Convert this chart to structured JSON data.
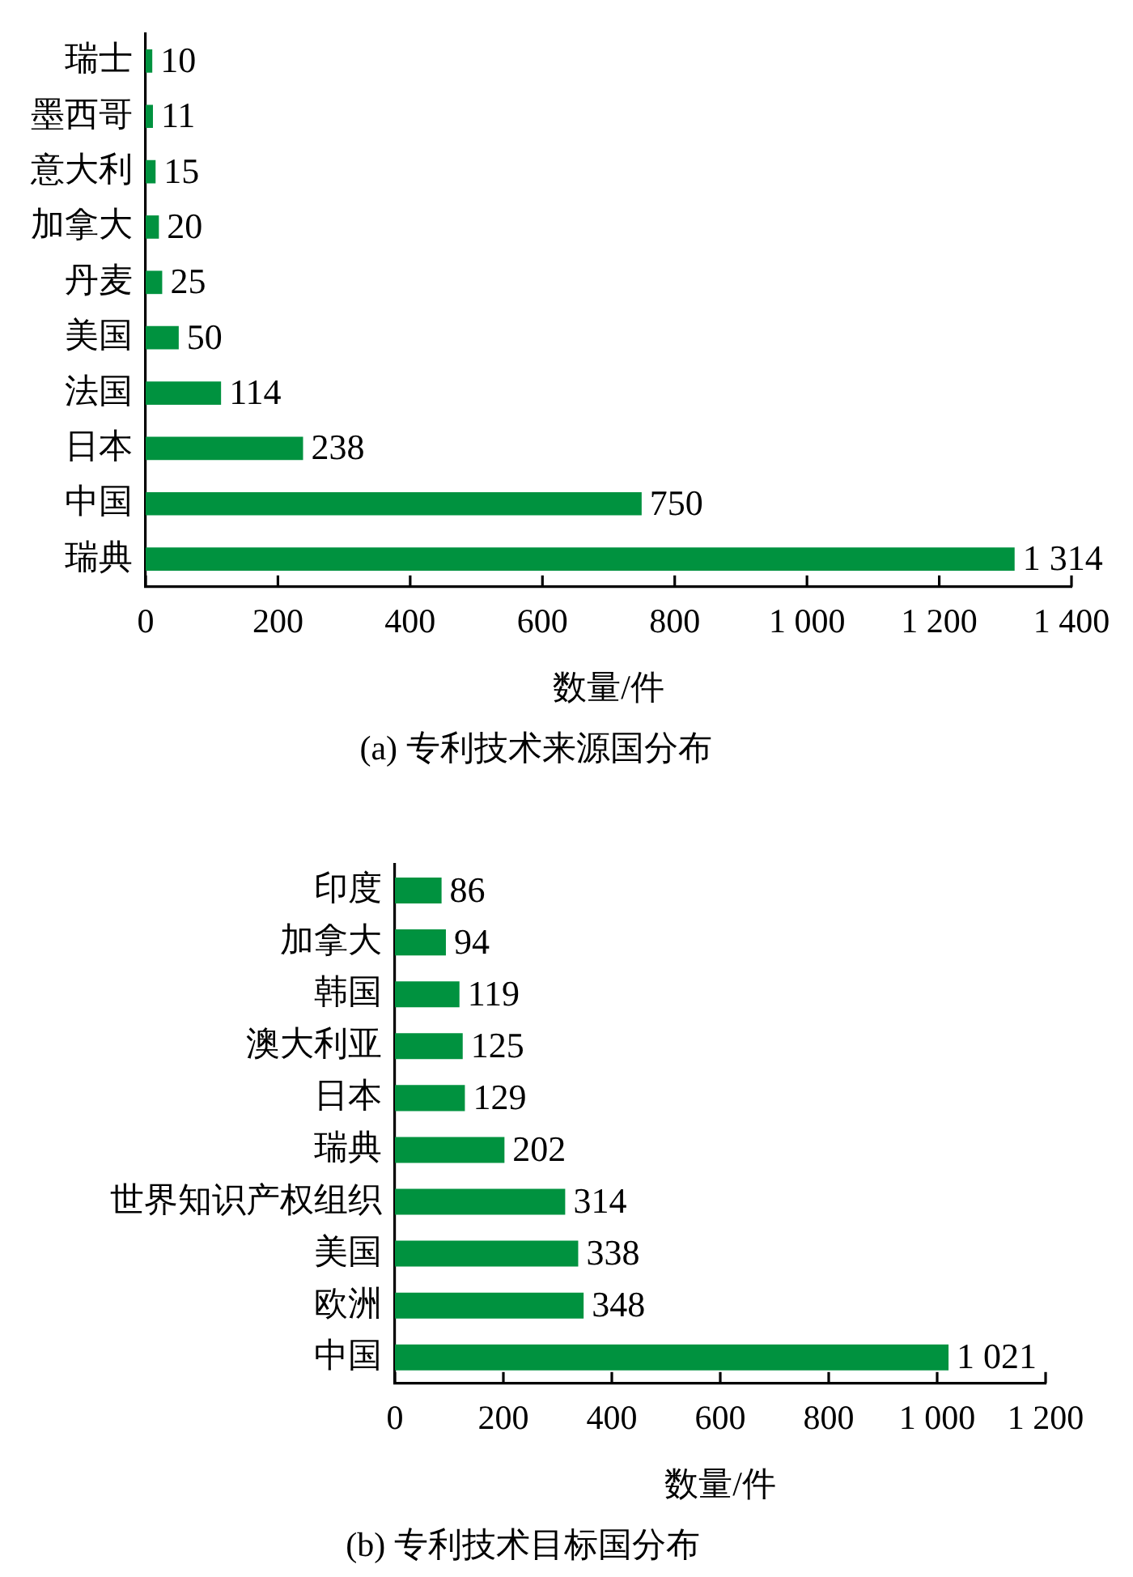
{
  "chart_data": [
    {
      "type": "bar",
      "orientation": "horizontal",
      "title": "(a) 专利技术来源国分布",
      "xlabel": "数量/件",
      "categories": [
        "瑞士",
        "墨西哥",
        "意大利",
        "加拿大",
        "丹麦",
        "美国",
        "法国",
        "日本",
        "中国",
        "瑞典"
      ],
      "values": [
        10,
        11,
        15,
        20,
        25,
        50,
        114,
        238,
        750,
        1314
      ],
      "value_labels": [
        "10",
        "11",
        "15",
        "20",
        "25",
        "50",
        "114",
        "238",
        "750",
        "1 314"
      ],
      "color": "#00923f",
      "xlim": [
        0,
        1400
      ],
      "xticks": [
        0,
        200,
        400,
        600,
        800,
        {
          "value": 1000,
          "label": "1 000"
        },
        {
          "value": 1200,
          "label": "1 200"
        },
        {
          "value": 1400,
          "label": "1 400"
        }
      ]
    },
    {
      "type": "bar",
      "orientation": "horizontal",
      "title": "(b) 专利技术目标国分布",
      "xlabel": "数量/件",
      "categories": [
        "印度",
        "加拿大",
        "韩国",
        "澳大利亚",
        "日本",
        "瑞典",
        "世界知识产权组织",
        "美国",
        "欧洲",
        "中国"
      ],
      "values": [
        86,
        94,
        119,
        125,
        129,
        202,
        314,
        338,
        348,
        1021
      ],
      "value_labels": [
        "86",
        "94",
        "119",
        "125",
        "129",
        "202",
        "314",
        "338",
        "348",
        "1 021"
      ],
      "color": "#00923f",
      "xlim": [
        0,
        1200
      ],
      "xticks": [
        0,
        200,
        400,
        600,
        800,
        {
          "value": 1000,
          "label": "1 000"
        },
        {
          "value": 1200,
          "label": "1 200"
        }
      ]
    }
  ]
}
